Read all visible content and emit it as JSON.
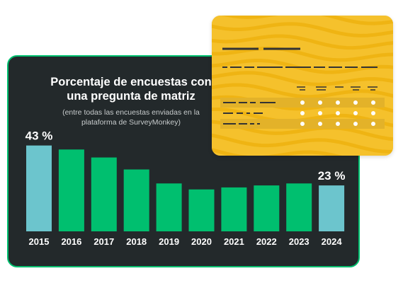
{
  "chart_data": {
    "type": "bar",
    "title": "Porcentaje de encuestas con una pregunta de matriz",
    "subtitle": "(entre todas las encuestas enviadas en la plataforma de SurveyMonkey)",
    "categories": [
      "2015",
      "2016",
      "2017",
      "2018",
      "2019",
      "2020",
      "2021",
      "2022",
      "2023",
      "2024"
    ],
    "values": [
      43,
      41,
      37,
      31,
      24,
      21,
      22,
      23,
      24,
      23
    ],
    "data_labels": {
      "2015": "43 %",
      "2024": "23 %"
    },
    "highlighted_categories": [
      "2015",
      "2024"
    ],
    "colors": {
      "bar": "#00bf6f",
      "highlight": "#6cc5cd",
      "card_background": "#23292b",
      "card_border": "#00bf6f",
      "text": "#ffffff"
    },
    "ylim": [
      0,
      45
    ],
    "grid": false,
    "legend": "none"
  },
  "decoration": {
    "form_card": {
      "background": "#f5c12c",
      "pattern_color": "#e9a900",
      "line_color": "#333333",
      "radio_rows": 3,
      "radio_columns": 5
    }
  }
}
